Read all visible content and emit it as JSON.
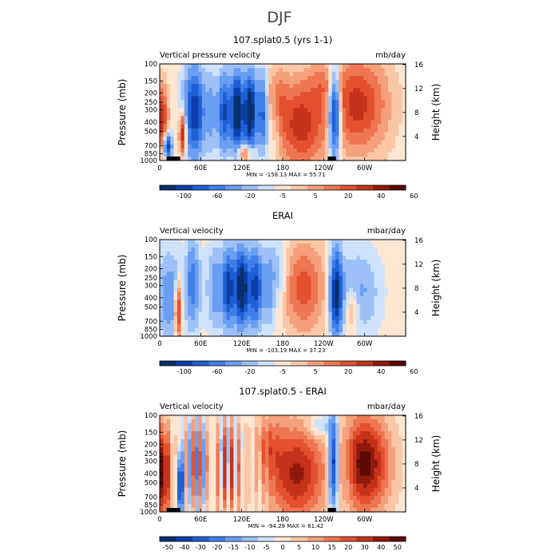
{
  "figure_title": "DJF",
  "colors": [
    "#08306b",
    "#0b3fa8",
    "#1f5fd6",
    "#3f7fe8",
    "#6a9ef2",
    "#9dc1f7",
    "#cfe2fb",
    "#fde6d2",
    "#fbc7a6",
    "#f5a07c",
    "#ee7650",
    "#e2502e",
    "#c4321a",
    "#8f1a0b",
    "#5c0a05"
  ],
  "chart_data": [
    {
      "type": "heatmap",
      "title": "107.splat0.5 (yrs 1-1)",
      "left_label": "Vertical pressure velocity",
      "units": "mb/day",
      "ylabel": "Pressure (mb)",
      "ylabel_right": "Height (km)",
      "xticks": [
        "0",
        "60E",
        "120E",
        "180",
        "120W",
        "60W"
      ],
      "yticks": [
        "100",
        "150",
        "200",
        "250",
        "300",
        "400",
        "500",
        "700",
        "850",
        "1000"
      ],
      "yticks_right": [
        "16",
        "12",
        "8",
        "4"
      ],
      "stats": "MIN = -158.13   MAX =  55.71",
      "colorbar_labels": [
        "-100",
        "-60",
        "-20",
        "-5",
        "5",
        "20",
        "40",
        "60"
      ],
      "field": "model",
      "topo": [
        [
          10,
          30
        ],
        [
          246,
          258
        ]
      ]
    },
    {
      "type": "heatmap",
      "title": "ERAI",
      "left_label": "Vertical velocity",
      "units": "mbar/day",
      "ylabel": "Pressure (mb)",
      "ylabel_right": "Height (km)",
      "xticks": [
        "0",
        "60E",
        "120E",
        "180",
        "120W",
        "60W"
      ],
      "yticks": [
        "100",
        "150",
        "200",
        "250",
        "300",
        "400",
        "500",
        "700",
        "850",
        "1000"
      ],
      "yticks_right": [
        "16",
        "12",
        "8",
        "4"
      ],
      "stats": "MIN = -103.19   MAX =  37.23",
      "colorbar_labels": [
        "-100",
        "-60",
        "-20",
        "-5",
        "5",
        "20",
        "40",
        "60"
      ],
      "field": "obs",
      "topo": []
    },
    {
      "type": "heatmap",
      "title": "107.splat0.5 - ERAI",
      "left_label": "Vertical velocity",
      "units": "mbar/day",
      "ylabel": "Pressure (mb)",
      "ylabel_right": "Height (km)",
      "xticks": [
        "0",
        "60E",
        "120E",
        "180",
        "120W",
        "60W"
      ],
      "yticks": [
        "100",
        "150",
        "200",
        "250",
        "300",
        "400",
        "500",
        "700",
        "850",
        "1000"
      ],
      "yticks_right": [
        "16",
        "12",
        "8",
        "4"
      ],
      "stats": "MIN = -94.29   MAX =  61.42",
      "colorbar_labels": [
        "-50",
        "-40",
        "-30",
        "-20",
        "-15",
        "-10",
        "-5",
        "0",
        "5",
        "10",
        "15",
        "20",
        "30",
        "40",
        "50"
      ],
      "field": "diff",
      "topo": [
        [
          10,
          30
        ],
        [
          246,
          258
        ]
      ]
    }
  ]
}
